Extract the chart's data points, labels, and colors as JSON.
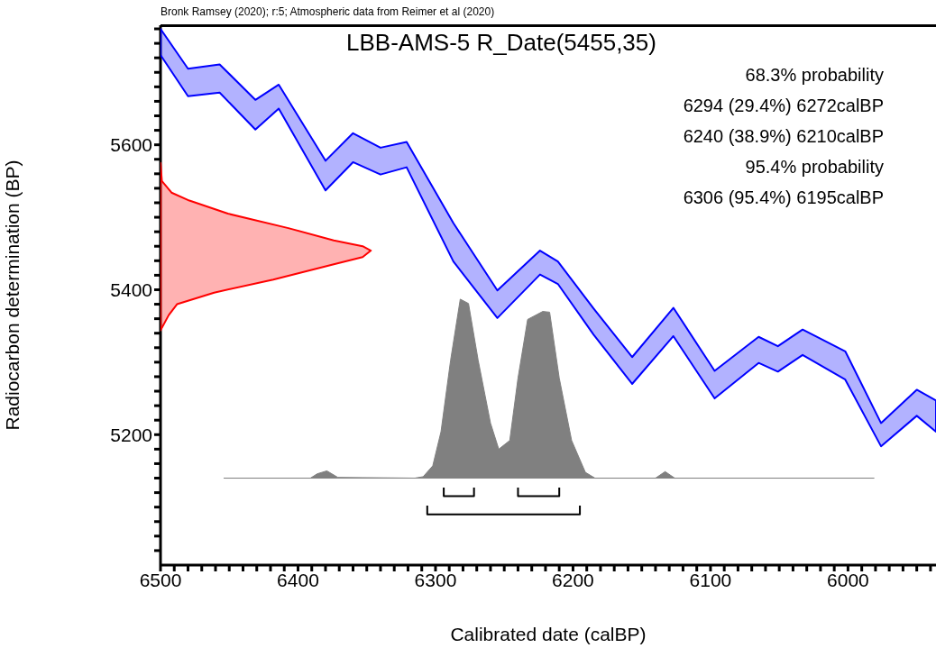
{
  "chart_data": {
    "type": "area",
    "title": "LBB-AMS-5 R_Date(5455,35)",
    "xlabel": "Calibrated date (calBP)",
    "ylabel": "Radiocarbon determination (BP)",
    "annotations": [
      "Bronk Ramsey (2020); r:5; Atmospheric data from Reimer et al (2020)",
      "68.3% probability",
      "6294 (29.4%) 6272calBP",
      "6240 (38.9%) 6210calBP",
      "95.4% probability",
      "6306 (95.4%) 6195calBP"
    ],
    "xlim": [
      6500,
      5936
    ],
    "ylim": [
      5020,
      5765
    ],
    "xticks": [
      6500,
      {
        "value": 6490,
        "label": null
      },
      {
        "value": 6480,
        "label": null
      },
      {
        "value": 6470,
        "label": null
      },
      {
        "value": 6460,
        "label": null
      },
      {
        "value": 6450,
        "label": null
      },
      {
        "value": 6440,
        "label": null
      },
      {
        "value": 6430,
        "label": null
      },
      {
        "value": 6420,
        "label": null
      },
      {
        "value": 6410,
        "label": null
      },
      6400,
      {
        "value": 6390,
        "label": null
      },
      {
        "value": 6380,
        "label": null
      },
      {
        "value": 6370,
        "label": null
      },
      {
        "value": 6360,
        "label": null
      },
      {
        "value": 6350,
        "label": null
      },
      {
        "value": 6340,
        "label": null
      },
      {
        "value": 6330,
        "label": null
      },
      {
        "value": 6320,
        "label": null
      },
      {
        "value": 6310,
        "label": null
      },
      6300,
      {
        "value": 6290,
        "label": null
      },
      {
        "value": 6280,
        "label": null
      },
      {
        "value": 6270,
        "label": null
      },
      {
        "value": 6260,
        "label": null
      },
      {
        "value": 6250,
        "label": null
      },
      {
        "value": 6240,
        "label": null
      },
      {
        "value": 6230,
        "label": null
      },
      {
        "value": 6220,
        "label": null
      },
      {
        "value": 6210,
        "label": null
      },
      6200,
      {
        "value": 6190,
        "label": null
      },
      {
        "value": 6180,
        "label": null
      },
      {
        "value": 6170,
        "label": null
      },
      {
        "value": 6160,
        "label": null
      },
      {
        "value": 6150,
        "label": null
      },
      {
        "value": 6140,
        "label": null
      },
      {
        "value": 6130,
        "label": null
      },
      {
        "value": 6120,
        "label": null
      },
      {
        "value": 6110,
        "label": null
      },
      6100,
      {
        "value": 6090,
        "label": null
      },
      {
        "value": 6080,
        "label": null
      },
      {
        "value": 6070,
        "label": null
      },
      {
        "value": 6060,
        "label": null
      },
      {
        "value": 6050,
        "label": null
      },
      {
        "value": 6040,
        "label": null
      },
      {
        "value": 6030,
        "label": null
      },
      {
        "value": 6020,
        "label": null
      },
      {
        "value": 6010,
        "label": null
      },
      6000,
      {
        "value": 5990,
        "label": null
      },
      {
        "value": 5980,
        "label": null
      },
      {
        "value": 5970,
        "label": null
      },
      {
        "value": 5960,
        "label": null
      },
      {
        "value": 5950,
        "label": null
      },
      {
        "value": 5940,
        "label": null
      }
    ],
    "yticks": [
      {
        "value": 5040,
        "label": null
      },
      {
        "value": 5060,
        "label": null
      },
      {
        "value": 5080,
        "label": null
      },
      {
        "value": 5100,
        "label": null
      },
      {
        "value": 5120,
        "label": null
      },
      {
        "value": 5140,
        "label": null
      },
      {
        "value": 5160,
        "label": null
      },
      {
        "value": 5180,
        "label": null
      },
      5200,
      {
        "value": 5220,
        "label": null
      },
      {
        "value": 5240,
        "label": null
      },
      {
        "value": 5260,
        "label": null
      },
      {
        "value": 5280,
        "label": null
      },
      {
        "value": 5300,
        "label": null
      },
      {
        "value": 5320,
        "label": null
      },
      {
        "value": 5340,
        "label": null
      },
      {
        "value": 5360,
        "label": null
      },
      {
        "value": 5380,
        "label": null
      },
      5400,
      {
        "value": 5420,
        "label": null
      },
      {
        "value": 5440,
        "label": null
      },
      {
        "value": 5460,
        "label": null
      },
      {
        "value": 5480,
        "label": null
      },
      {
        "value": 5500,
        "label": null
      },
      {
        "value": 5520,
        "label": null
      },
      {
        "value": 5540,
        "label": null
      },
      {
        "value": 5560,
        "label": null
      },
      {
        "value": 5580,
        "label": null
      },
      5600,
      {
        "value": 5620,
        "label": null
      },
      {
        "value": 5640,
        "label": null
      },
      {
        "value": 5660,
        "label": null
      },
      {
        "value": 5680,
        "label": null
      },
      {
        "value": 5700,
        "label": null
      },
      {
        "value": 5720,
        "label": null
      },
      {
        "value": 5740,
        "label": null
      },
      {
        "value": 5760,
        "label": null
      }
    ],
    "grid": false,
    "series": [
      {
        "color": "#0000ff",
        "x": [
          6500,
          6480,
          6457,
          6431,
          6414,
          6380,
          6360,
          6340,
          6321,
          6287,
          6255,
          6224,
          6211,
          6185,
          6157,
          6127,
          6097,
          6065,
          6051,
          6033,
          6002,
          5976,
          5950,
          5936,
          5936,
          5950,
          5976,
          6002,
          6033,
          6051,
          6065,
          6097,
          6127,
          6157,
          6185,
          6211,
          6224,
          6255,
          6287,
          6321,
          6340,
          6360,
          6380,
          6414,
          6431,
          6457,
          6480,
          6500
        ],
        "values": [
          5760,
          5705,
          5711,
          5662,
          5683,
          5578,
          5616,
          5596,
          5604,
          5492,
          5399,
          5454,
          5439,
          5374,
          5307,
          5375,
          5288,
          5335,
          5322,
          5345,
          5315,
          5216,
          5262,
          5247,
          5204,
          5226,
          5184,
          5276,
          5310,
          5287,
          5299,
          5250,
          5336,
          5270,
          5338,
          5408,
          5421,
          5361,
          5439,
          5569,
          5559,
          5576,
          5537,
          5650,
          5621,
          5672,
          5667,
          5724
        ]
      },
      {
        "color": "#ff0000",
        "x": [
          6500,
          6499,
          6492,
          6479,
          6451,
          6407,
          6374,
          6353,
          6347,
          6353,
          6374,
          6418,
          6461,
          6488,
          6494,
          6500
        ],
        "values": [
          5575,
          5550,
          5534,
          5523,
          5505,
          5485,
          5468,
          5460,
          5454,
          5445,
          5435,
          5414,
          5396,
          5380,
          5365,
          5344
        ]
      },
      {
        "color": "#808080",
        "x": [
          6454,
          6391,
          6386,
          6379,
          6371,
          6315,
          6309,
          6302,
          6296,
          6289,
          6282,
          6276,
          6269,
          6260,
          6254,
          6246,
          6240,
          6233,
          6222,
          6217,
          6210,
          6201,
          6191,
          6184,
          6140,
          6133,
          6126,
          5981,
          6454
        ],
        "values": [
          5140,
          5140,
          5146,
          5150,
          5141,
          5140,
          5142,
          5157,
          5204,
          5303,
          5387,
          5381,
          5303,
          5216,
          5180,
          5192,
          5278,
          5359,
          5370,
          5369,
          5278,
          5192,
          5148,
          5140,
          5140,
          5149,
          5140,
          5140,
          5140
        ]
      },
      {
        "type": "line",
        "color": "#000000",
        "x": [
          6294,
          6294,
          6272,
          6272
        ],
        "values": [
          5127,
          5115,
          5115,
          5127
        ]
      },
      {
        "type": "line",
        "color": "#000000",
        "x": [
          6240,
          6240,
          6210,
          6210
        ],
        "values": [
          5127,
          5115,
          5115,
          5127
        ]
      },
      {
        "type": "line",
        "color": "#000000",
        "x": [
          6306,
          6306,
          6195,
          6195
        ],
        "values": [
          5102,
          5090,
          5090,
          5102
        ]
      }
    ]
  }
}
